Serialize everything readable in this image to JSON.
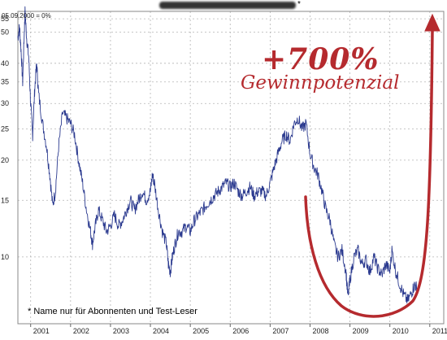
{
  "header": {
    "title_asterisk": "*",
    "reference_label": "05.09.2000 = 0%"
  },
  "footnote": "* Name nur für Abonnenten und Test-Leser",
  "annotation": {
    "headline": "+700%",
    "subline": "Gewinnpotenzial",
    "color": "#b52a2e"
  },
  "chart_data": {
    "type": "line",
    "y_scale": "log",
    "ylim": [
      6.2,
      58
    ],
    "xlim": [
      2000.68,
      2011.35
    ],
    "y_ticks": [
      {
        "value": 55,
        "label": "55"
      },
      {
        "value": 50,
        "label": "50"
      },
      {
        "value": 40,
        "label": "40"
      },
      {
        "value": 35,
        "label": "35"
      },
      {
        "value": 30,
        "label": "30"
      },
      {
        "value": 25,
        "label": "25"
      },
      {
        "value": 20,
        "label": "20"
      },
      {
        "value": 15,
        "label": "15"
      },
      {
        "value": 10,
        "label": "10"
      }
    ],
    "x_ticks": [
      {
        "value": 2001,
        "label": "2001"
      },
      {
        "value": 2002,
        "label": "2002"
      },
      {
        "value": 2003,
        "label": "2003"
      },
      {
        "value": 2004,
        "label": "2004"
      },
      {
        "value": 2005,
        "label": "2005"
      },
      {
        "value": 2006,
        "label": "2006"
      },
      {
        "value": 2007,
        "label": "2007"
      },
      {
        "value": 2008,
        "label": "2008"
      },
      {
        "value": 2009,
        "label": "2009"
      },
      {
        "value": 2010,
        "label": "2010"
      },
      {
        "value": 2011,
        "label": "2011"
      }
    ],
    "grid": true,
    "series": [
      {
        "color": "#2b3a8f",
        "points": [
          [
            2000.68,
            48
          ],
          [
            2000.72,
            52
          ],
          [
            2000.76,
            44
          ],
          [
            2000.8,
            35
          ],
          [
            2000.84,
            50
          ],
          [
            2000.86,
            58
          ],
          [
            2000.9,
            48
          ],
          [
            2000.95,
            42
          ],
          [
            2001.0,
            30
          ],
          [
            2001.05,
            24
          ],
          [
            2001.1,
            33
          ],
          [
            2001.15,
            40
          ],
          [
            2001.2,
            32
          ],
          [
            2001.3,
            26
          ],
          [
            2001.4,
            22
          ],
          [
            2001.48,
            18
          ],
          [
            2001.55,
            14.5
          ],
          [
            2001.62,
            16
          ],
          [
            2001.7,
            22
          ],
          [
            2001.8,
            28
          ],
          [
            2001.9,
            27
          ],
          [
            2002.0,
            26
          ],
          [
            2002.1,
            24
          ],
          [
            2002.2,
            20
          ],
          [
            2002.3,
            17
          ],
          [
            2002.4,
            14
          ],
          [
            2002.5,
            12
          ],
          [
            2002.55,
            11
          ],
          [
            2002.62,
            12.5
          ],
          [
            2002.7,
            14
          ],
          [
            2002.8,
            13
          ],
          [
            2002.9,
            12
          ],
          [
            2003.0,
            12.5
          ],
          [
            2003.1,
            13.5
          ],
          [
            2003.2,
            12.5
          ],
          [
            2003.3,
            13
          ],
          [
            2003.4,
            14
          ],
          [
            2003.5,
            15
          ],
          [
            2003.6,
            14
          ],
          [
            2003.7,
            15
          ],
          [
            2003.8,
            16
          ],
          [
            2003.9,
            15
          ],
          [
            2004.0,
            16
          ],
          [
            2004.05,
            18
          ],
          [
            2004.1,
            17
          ],
          [
            2004.2,
            14
          ],
          [
            2004.3,
            12
          ],
          [
            2004.4,
            11
          ],
          [
            2004.45,
            9.5
          ],
          [
            2004.5,
            9
          ],
          [
            2004.55,
            10
          ],
          [
            2004.62,
            11
          ],
          [
            2004.7,
            12
          ],
          [
            2004.8,
            12
          ],
          [
            2004.9,
            12.5
          ],
          [
            2005.0,
            12
          ],
          [
            2005.1,
            13
          ],
          [
            2005.2,
            13.5
          ],
          [
            2005.3,
            14
          ],
          [
            2005.4,
            14.5
          ],
          [
            2005.5,
            15
          ],
          [
            2005.6,
            15.5
          ],
          [
            2005.7,
            16
          ],
          [
            2005.8,
            16.5
          ],
          [
            2005.9,
            17
          ],
          [
            2006.0,
            16.5
          ],
          [
            2006.1,
            17
          ],
          [
            2006.2,
            16
          ],
          [
            2006.3,
            15.5
          ],
          [
            2006.4,
            16
          ],
          [
            2006.5,
            16.5
          ],
          [
            2006.6,
            15.5
          ],
          [
            2006.7,
            16
          ],
          [
            2006.8,
            16
          ],
          [
            2006.9,
            15.5
          ],
          [
            2007.0,
            17
          ],
          [
            2007.1,
            19
          ],
          [
            2007.2,
            21
          ],
          [
            2007.3,
            23
          ],
          [
            2007.4,
            24
          ],
          [
            2007.5,
            23
          ],
          [
            2007.6,
            26
          ],
          [
            2007.7,
            27
          ],
          [
            2007.8,
            25
          ],
          [
            2007.9,
            26
          ],
          [
            2008.0,
            21
          ],
          [
            2008.1,
            19
          ],
          [
            2008.2,
            18
          ],
          [
            2008.3,
            16
          ],
          [
            2008.4,
            14
          ],
          [
            2008.5,
            13
          ],
          [
            2008.6,
            11
          ],
          [
            2008.7,
            10
          ],
          [
            2008.8,
            10.5
          ],
          [
            2008.9,
            9
          ],
          [
            2008.95,
            7.5
          ],
          [
            2009.0,
            8.5
          ],
          [
            2009.1,
            10
          ],
          [
            2009.2,
            10.5
          ],
          [
            2009.3,
            9.5
          ],
          [
            2009.4,
            9.8
          ],
          [
            2009.5,
            9
          ],
          [
            2009.6,
            10
          ],
          [
            2009.7,
            9.2
          ],
          [
            2009.8,
            8.8
          ],
          [
            2009.9,
            9.5
          ],
          [
            2010.0,
            9
          ],
          [
            2010.05,
            10.5
          ],
          [
            2010.15,
            9
          ],
          [
            2010.25,
            8.2
          ],
          [
            2010.35,
            7.6
          ],
          [
            2010.45,
            7.3
          ],
          [
            2010.55,
            7.8
          ],
          [
            2010.62,
            8.2
          ],
          [
            2010.68,
            8.0
          ]
        ]
      }
    ]
  }
}
